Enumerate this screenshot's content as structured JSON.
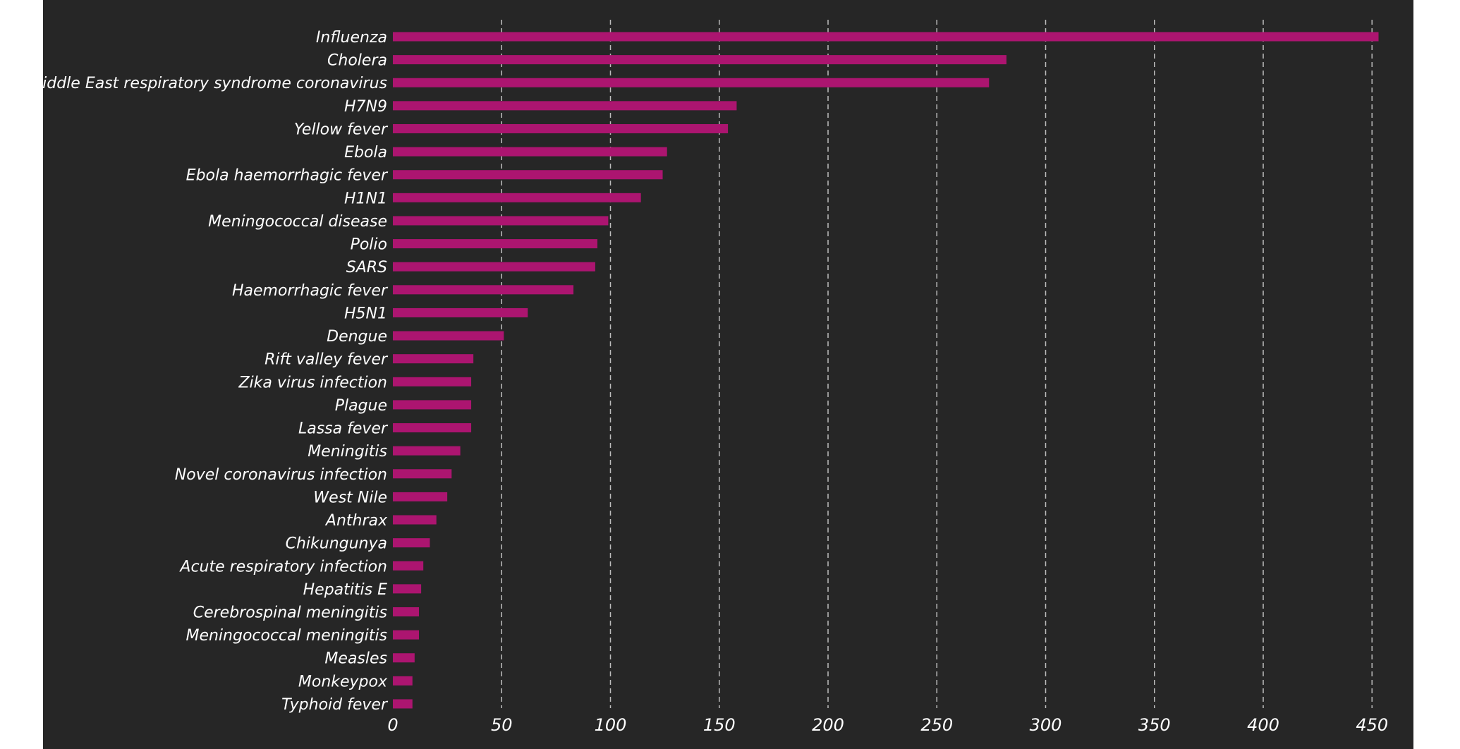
{
  "colors": {
    "background": "#262626",
    "bar": "#ac1570",
    "grid": "#bdbdbd",
    "text": "#ffffff"
  },
  "chart_data": {
    "type": "bar",
    "orientation": "horizontal",
    "title": "",
    "xlabel": "",
    "ylabel": "",
    "xlim": [
      0,
      455
    ],
    "xticks": [
      0,
      50,
      100,
      150,
      200,
      250,
      300,
      350,
      400,
      450
    ],
    "grid": "vertical dashed",
    "categories": [
      "Influenza",
      "Cholera",
      "Middle East respiratory syndrome coronavirus",
      "H7N9",
      "Yellow fever",
      "Ebola",
      "Ebola haemorrhagic fever",
      "H1N1",
      "Meningococcal disease",
      "Polio",
      "SARS",
      "Haemorrhagic fever",
      "H5N1",
      "Dengue",
      "Rift valley fever",
      "Zika virus infection",
      "Plague",
      "Lassa fever",
      "Meningitis",
      "Novel coronavirus infection",
      "West Nile",
      "Anthrax",
      "Chikungunya",
      "Acute respiratory infection",
      "Hepatitis E",
      "Cerebrospinal meningitis",
      "Meningococcal meningitis",
      "Measles",
      "Monkeypox",
      "Typhoid fever"
    ],
    "values": [
      453,
      282,
      274,
      158,
      154,
      126,
      124,
      114,
      99,
      94,
      93,
      83,
      62,
      51,
      37,
      36,
      36,
      36,
      31,
      27,
      25,
      20,
      17,
      14,
      13,
      12,
      12,
      10,
      9,
      9
    ]
  }
}
